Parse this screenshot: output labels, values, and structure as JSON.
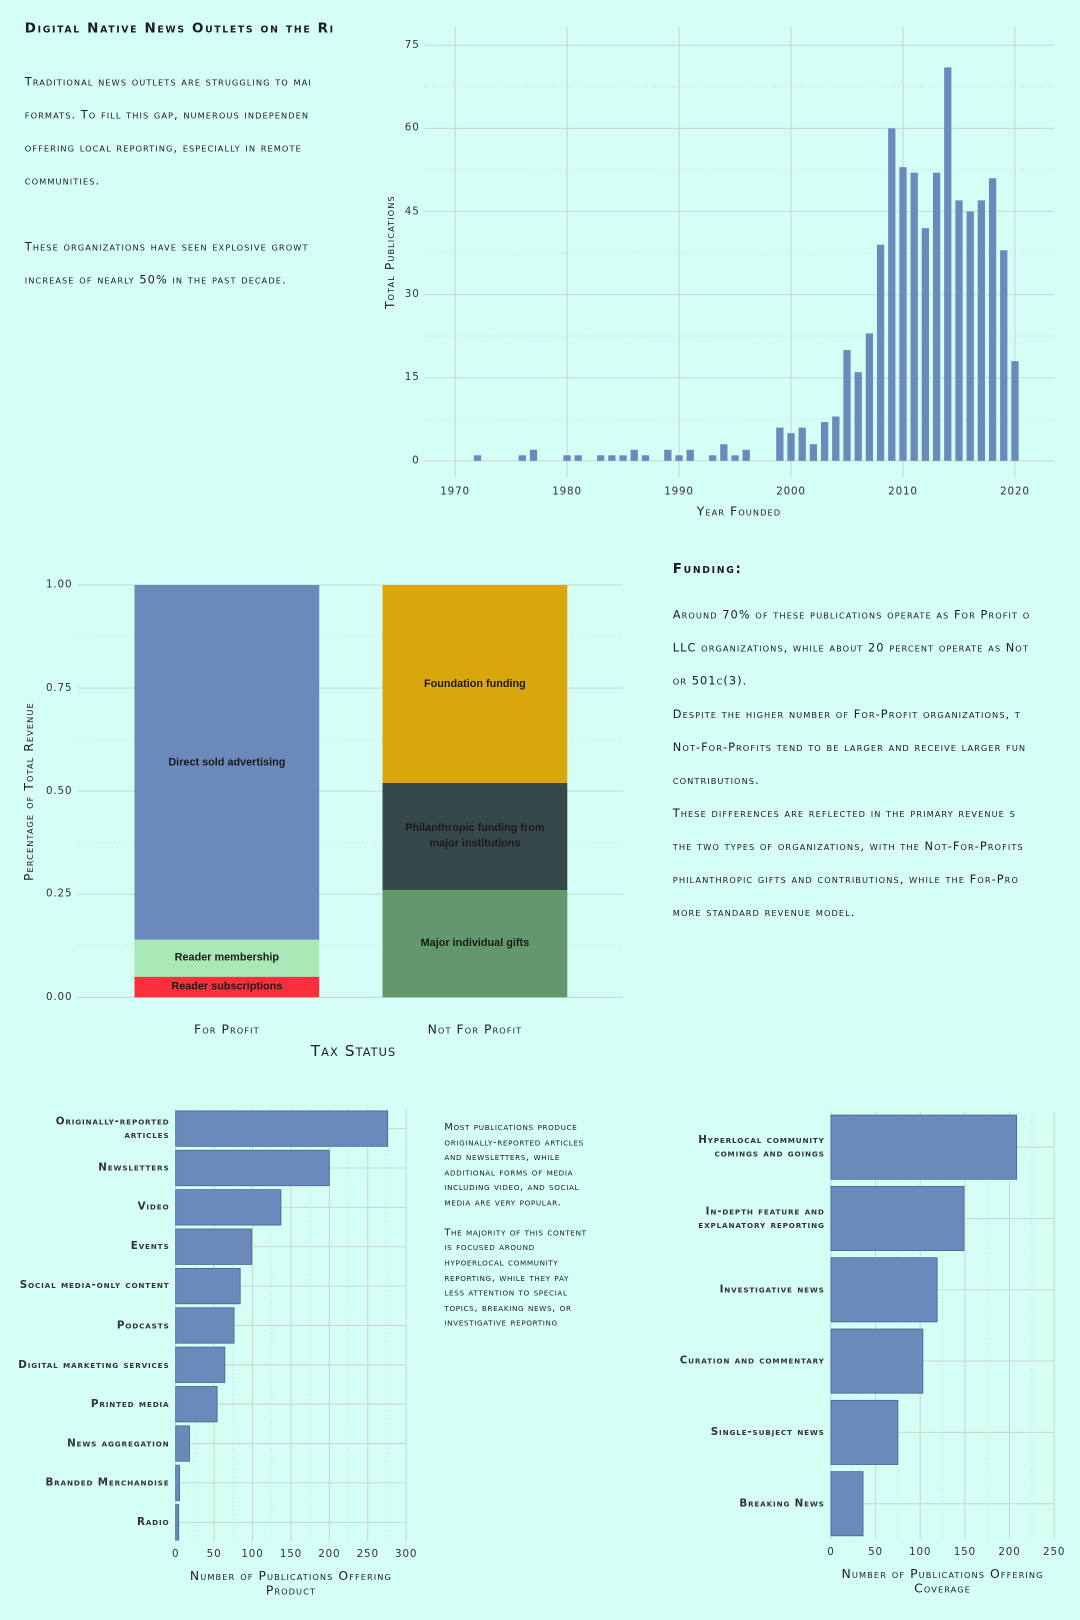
{
  "intro": {
    "title": "Digital Native News Outlets on the Ri",
    "paragraphs": [
      [
        "Traditional news outlets are struggling to mai",
        "formats. To fill this gap, numerous independen",
        "offering local reporting, especially in remote",
        "communities."
      ],
      [
        "These organizations have seen explosive growt",
        "increase of nearly 50% in the past decade."
      ]
    ]
  },
  "funding": {
    "title": "Funding:",
    "lines": [
      "Around 70% of these publications operate as For Profit o",
      "LLC organizations, while about 20 percent operate as Not",
      "or 501c(3).",
      "Despite the higher number of For-Profit organizations, t",
      "Not-For-Profits tend to be larger and receive larger fun",
      "contributions.",
      "These differences are reflected in the primary revenue s",
      "the two types of organizations, with the Not-For-Profits",
      "philanthropic gifts and contributions, while the For-Pro",
      "more standard revenue model."
    ]
  },
  "content_note": {
    "paragraphs": [
      [
        "Most publications produce",
        "originally-reported articles",
        "and newsletters, while",
        "additional forms of media",
        "including video, and social",
        "media are very popular."
      ],
      [
        "The majority of this content",
        "is focused around",
        "hypoerlocal community",
        "reporting, while they pay",
        "less attention to special",
        "topics, breaking news, or",
        "investigative reporting"
      ]
    ]
  },
  "chart_data": [
    {
      "type": "bar",
      "xlabel": "Year Founded",
      "ylabel": "Total Publications",
      "color": "#6b89ba",
      "grid": true,
      "x": [
        1972,
        1976,
        1977,
        1980,
        1981,
        1983,
        1984,
        1985,
        1986,
        1987,
        1989,
        1990,
        1991,
        1993,
        1994,
        1995,
        1996,
        1999,
        2000,
        2001,
        2002,
        2003,
        2004,
        2005,
        2006,
        2007,
        2008,
        2009,
        2010,
        2011,
        2012,
        2013,
        2014,
        2015,
        2016,
        2017,
        2018,
        2019,
        2020
      ],
      "values": [
        1,
        1,
        2,
        1,
        1,
        1,
        1,
        1,
        2,
        1,
        2,
        1,
        2,
        1,
        3,
        1,
        2,
        6,
        5,
        6,
        3,
        7,
        8,
        20,
        16,
        23,
        39,
        60,
        53,
        52,
        42,
        52,
        71,
        47,
        45,
        47,
        51,
        38,
        18
      ],
      "xlim": [
        1967.2,
        2023.5
      ],
      "xticks": [
        1970,
        1980,
        1990,
        2000,
        2010,
        2020
      ],
      "ylim": [
        -3,
        78.5
      ],
      "yticks": [
        0,
        15,
        30,
        45,
        60,
        75
      ]
    },
    {
      "type": "stacked_bar",
      "xlabel": "Tax Status",
      "ylabel": "Percentage of Total Revenue",
      "grid": true,
      "categories": [
        "For Profit",
        "Not For Profit"
      ],
      "series": [
        {
          "name": "Reader subscriptions",
          "color": "#fb2f3b",
          "values": [
            0.05,
            null
          ]
        },
        {
          "name": "Reader membership",
          "color": "#a9e9b8",
          "values": [
            0.09,
            null
          ]
        },
        {
          "name": "Direct sold advertising",
          "color": "#6b89ba",
          "values": [
            0.86,
            null
          ]
        },
        {
          "name": "Major individual gifts",
          "color": "#63986d",
          "values": [
            null,
            0.26
          ]
        },
        {
          "name": "Philanthropic funding from major institutions",
          "color": "#36494a",
          "values": [
            null,
            0.26
          ]
        },
        {
          "name": "Foundation funding",
          "color": "#d9a70b",
          "values": [
            null,
            0.48
          ]
        }
      ],
      "ylim": [
        0,
        1
      ],
      "yticks": [
        {
          "value": 0,
          "label": "0.00"
        },
        0.25,
        {
          "value": 0.5,
          "label": "0.50"
        },
        0.75,
        {
          "value": 1,
          "label": "1.00"
        }
      ]
    },
    {
      "type": "hbar",
      "xlabel": "Number of Publications Offering Product",
      "color": "#6b89ba",
      "grid": true,
      "categories": [
        "Originally-reported articles",
        "Newsletters",
        "Video",
        "Events",
        "Social media-only content",
        "Podcasts",
        "Digital marketing services",
        "Printed media",
        "News aggregation",
        "Branded Merchandise",
        "Radio"
      ],
      "values": [
        276,
        200,
        137,
        99,
        84,
        76,
        64,
        54,
        18,
        5,
        4
      ],
      "xlim": [
        0,
        300
      ],
      "xticks": [
        0,
        50,
        100,
        150,
        200,
        250,
        300
      ]
    },
    {
      "type": "hbar",
      "xlabel": "Number of Publications Offering Coverage",
      "color": "#6b89ba",
      "grid": true,
      "categories": [
        "Hyperlocal community comings and goings",
        "In-depth feature and explanatory reporting",
        "Investigative news",
        "Curation and commentary",
        "Single-subject news",
        "Breaking News"
      ],
      "values": [
        208,
        149,
        119,
        103,
        75,
        36
      ],
      "xlim": [
        0,
        250
      ],
      "xticks": [
        0,
        50,
        100,
        150,
        200,
        250
      ]
    }
  ]
}
